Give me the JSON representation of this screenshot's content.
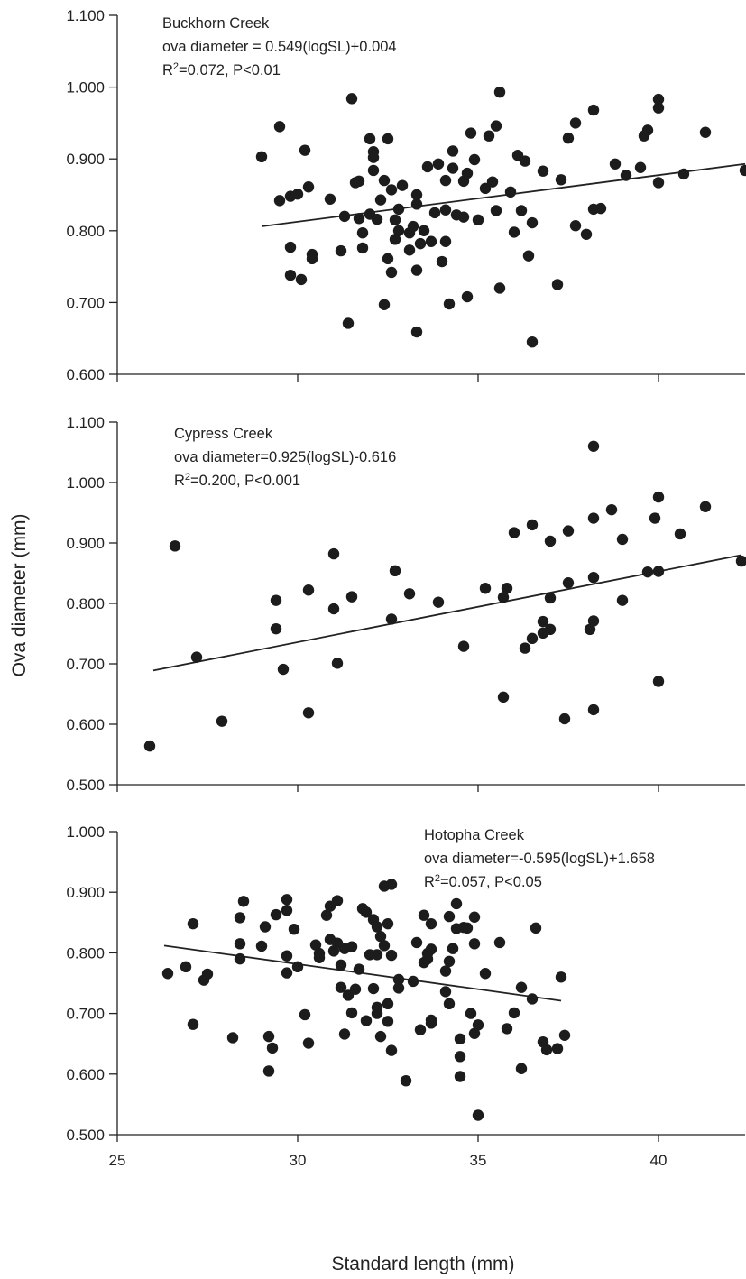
{
  "ylabel": "Ova diameter (mm)",
  "xlabel": "Standard length (mm)",
  "chart_data": [
    {
      "type": "scatter",
      "title": "",
      "annotation": [
        "Buckhorn Creek",
        "ova diameter = 0.549(logSL)+0.004",
        "R2=0.072, P<0.01"
      ],
      "xlim": [
        25,
        42.4
      ],
      "ylim": [
        0.6,
        1.1
      ],
      "yticks": [
        "0.600",
        "0.700",
        "0.800",
        "0.900",
        "1.000",
        "1.100"
      ],
      "xticks": [],
      "trend": {
        "x": [
          29.0,
          42.4
        ],
        "y": [
          0.806,
          0.893
        ]
      },
      "points": [
        [
          29.0,
          0.903
        ],
        [
          29.5,
          0.945
        ],
        [
          29.5,
          0.842
        ],
        [
          29.8,
          0.848
        ],
        [
          29.8,
          0.777
        ],
        [
          29.8,
          0.738
        ],
        [
          30.0,
          0.851
        ],
        [
          30.1,
          0.732
        ],
        [
          30.2,
          0.912
        ],
        [
          30.3,
          0.861
        ],
        [
          30.4,
          0.767
        ],
        [
          30.4,
          0.761
        ],
        [
          30.9,
          0.844
        ],
        [
          31.2,
          0.772
        ],
        [
          31.3,
          0.82
        ],
        [
          31.4,
          0.671
        ],
        [
          31.5,
          0.984
        ],
        [
          31.6,
          0.867
        ],
        [
          31.7,
          0.817
        ],
        [
          31.7,
          0.869
        ],
        [
          31.8,
          0.776
        ],
        [
          31.8,
          0.797
        ],
        [
          32.0,
          0.928
        ],
        [
          32.0,
          0.823
        ],
        [
          32.1,
          0.902
        ],
        [
          32.1,
          0.91
        ],
        [
          32.1,
          0.884
        ],
        [
          32.2,
          0.816
        ],
        [
          32.3,
          0.843
        ],
        [
          32.4,
          0.697
        ],
        [
          32.4,
          0.87
        ],
        [
          32.5,
          0.928
        ],
        [
          32.5,
          0.761
        ],
        [
          32.6,
          0.857
        ],
        [
          32.6,
          0.742
        ],
        [
          32.7,
          0.815
        ],
        [
          32.7,
          0.788
        ],
        [
          32.8,
          0.83
        ],
        [
          32.8,
          0.8
        ],
        [
          32.9,
          0.863
        ],
        [
          33.1,
          0.797
        ],
        [
          33.1,
          0.773
        ],
        [
          33.2,
          0.806
        ],
        [
          33.3,
          0.85
        ],
        [
          33.3,
          0.837
        ],
        [
          33.3,
          0.745
        ],
        [
          33.3,
          0.659
        ],
        [
          33.4,
          0.782
        ],
        [
          33.5,
          0.8
        ],
        [
          33.6,
          0.889
        ],
        [
          33.7,
          0.785
        ],
        [
          33.8,
          0.825
        ],
        [
          33.9,
          0.893
        ],
        [
          34.0,
          0.757
        ],
        [
          34.1,
          0.785
        ],
        [
          34.1,
          0.87
        ],
        [
          34.1,
          0.829
        ],
        [
          34.2,
          0.698
        ],
        [
          34.3,
          0.911
        ],
        [
          34.3,
          0.887
        ],
        [
          34.4,
          0.822
        ],
        [
          34.6,
          0.819
        ],
        [
          34.6,
          0.869
        ],
        [
          34.7,
          0.88
        ],
        [
          34.7,
          0.708
        ],
        [
          34.8,
          0.936
        ],
        [
          34.9,
          0.899
        ],
        [
          35.0,
          0.815
        ],
        [
          35.2,
          0.859
        ],
        [
          35.3,
          0.932
        ],
        [
          35.4,
          0.868
        ],
        [
          35.5,
          0.946
        ],
        [
          35.5,
          0.828
        ],
        [
          35.6,
          0.993
        ],
        [
          35.6,
          0.72
        ],
        [
          35.9,
          0.854
        ],
        [
          36.0,
          0.798
        ],
        [
          36.1,
          0.905
        ],
        [
          36.2,
          0.828
        ],
        [
          36.3,
          0.897
        ],
        [
          36.4,
          0.765
        ],
        [
          36.5,
          0.811
        ],
        [
          36.5,
          0.645
        ],
        [
          36.8,
          0.883
        ],
        [
          37.2,
          0.725
        ],
        [
          37.3,
          0.871
        ],
        [
          37.5,
          0.929
        ],
        [
          37.7,
          0.807
        ],
        [
          37.7,
          0.95
        ],
        [
          38.0,
          0.795
        ],
        [
          38.2,
          0.968
        ],
        [
          38.2,
          0.83
        ],
        [
          38.4,
          0.831
        ],
        [
          38.8,
          0.893
        ],
        [
          39.1,
          0.877
        ],
        [
          39.5,
          0.888
        ],
        [
          39.6,
          0.932
        ],
        [
          39.7,
          0.94
        ],
        [
          40.0,
          0.983
        ],
        [
          40.0,
          0.971
        ],
        [
          40.0,
          0.867
        ],
        [
          40.7,
          0.879
        ],
        [
          41.3,
          0.937
        ],
        [
          42.4,
          0.884
        ]
      ]
    },
    {
      "type": "scatter",
      "title": "",
      "annotation": [
        "Cypress Creek",
        "ova diameter=0.925(logSL)-0.616",
        "R2=0.200, P<0.001"
      ],
      "xlim": [
        25,
        42.4
      ],
      "ylim": [
        0.5,
        1.1
      ],
      "yticks": [
        "0.500",
        "0.600",
        "0.700",
        "0.800",
        "0.900",
        "1.000",
        "1.100"
      ],
      "xticks": [],
      "trend": {
        "x": [
          26.0,
          42.3
        ],
        "y": [
          0.689,
          0.88
        ]
      },
      "points": [
        [
          25.9,
          0.564
        ],
        [
          26.6,
          0.895
        ],
        [
          27.2,
          0.711
        ],
        [
          27.9,
          0.605
        ],
        [
          29.4,
          0.805
        ],
        [
          29.4,
          0.758
        ],
        [
          29.6,
          0.691
        ],
        [
          30.3,
          0.822
        ],
        [
          30.3,
          0.619
        ],
        [
          31.0,
          0.882
        ],
        [
          31.0,
          0.791
        ],
        [
          31.1,
          0.701
        ],
        [
          31.5,
          0.811
        ],
        [
          32.6,
          0.774
        ],
        [
          32.7,
          0.854
        ],
        [
          33.1,
          0.816
        ],
        [
          33.9,
          0.802
        ],
        [
          34.6,
          0.729
        ],
        [
          35.2,
          0.825
        ],
        [
          35.7,
          0.81
        ],
        [
          35.7,
          0.645
        ],
        [
          35.8,
          0.825
        ],
        [
          36.0,
          0.917
        ],
        [
          36.3,
          0.726
        ],
        [
          36.5,
          0.93
        ],
        [
          36.5,
          0.742
        ],
        [
          36.8,
          0.751
        ],
        [
          36.8,
          0.77
        ],
        [
          37.0,
          0.757
        ],
        [
          37.0,
          0.903
        ],
        [
          37.0,
          0.809
        ],
        [
          37.4,
          0.609
        ],
        [
          37.5,
          0.92
        ],
        [
          37.5,
          0.834
        ],
        [
          38.1,
          0.757
        ],
        [
          38.2,
          1.06
        ],
        [
          38.2,
          0.941
        ],
        [
          38.2,
          0.843
        ],
        [
          38.2,
          0.771
        ],
        [
          38.2,
          0.624
        ],
        [
          38.7,
          0.955
        ],
        [
          39.0,
          0.906
        ],
        [
          39.0,
          0.805
        ],
        [
          39.7,
          0.852
        ],
        [
          39.9,
          0.941
        ],
        [
          40.0,
          0.976
        ],
        [
          40.0,
          0.853
        ],
        [
          40.0,
          0.671
        ],
        [
          40.6,
          0.915
        ],
        [
          41.3,
          0.96
        ],
        [
          42.3,
          0.87
        ]
      ]
    },
    {
      "type": "scatter",
      "title": "",
      "annotation": [
        "Hotopha Creek",
        "ova diameter=-0.595(logSL)+1.658",
        "R2=0.057, P<0.05"
      ],
      "xlim": [
        25,
        42.4
      ],
      "ylim": [
        0.5,
        1.0
      ],
      "yticks": [
        "0.500",
        "0.600",
        "0.700",
        "0.800",
        "0.900",
        "1.000"
      ],
      "xticks": [
        "25",
        "30",
        "35",
        "40"
      ],
      "trend": {
        "x": [
          26.3,
          37.3
        ],
        "y": [
          0.812,
          0.721
        ]
      },
      "points": [
        [
          26.4,
          0.766
        ],
        [
          26.9,
          0.777
        ],
        [
          27.1,
          0.848
        ],
        [
          27.1,
          0.682
        ],
        [
          27.4,
          0.755
        ],
        [
          27.5,
          0.765
        ],
        [
          28.2,
          0.66
        ],
        [
          28.4,
          0.858
        ],
        [
          28.4,
          0.815
        ],
        [
          28.4,
          0.79
        ],
        [
          28.5,
          0.885
        ],
        [
          29.0,
          0.811
        ],
        [
          29.1,
          0.843
        ],
        [
          29.2,
          0.605
        ],
        [
          29.2,
          0.662
        ],
        [
          29.3,
          0.643
        ],
        [
          29.4,
          0.863
        ],
        [
          29.7,
          0.888
        ],
        [
          29.7,
          0.87
        ],
        [
          29.7,
          0.795
        ],
        [
          29.7,
          0.767
        ],
        [
          29.9,
          0.839
        ],
        [
          30.0,
          0.777
        ],
        [
          30.2,
          0.698
        ],
        [
          30.3,
          0.651
        ],
        [
          30.5,
          0.813
        ],
        [
          30.6,
          0.799
        ],
        [
          30.6,
          0.792
        ],
        [
          30.8,
          0.862
        ],
        [
          30.9,
          0.877
        ],
        [
          30.9,
          0.822
        ],
        [
          31.0,
          0.803
        ],
        [
          31.1,
          0.886
        ],
        [
          31.1,
          0.816
        ],
        [
          31.2,
          0.78
        ],
        [
          31.2,
          0.743
        ],
        [
          31.3,
          0.666
        ],
        [
          31.3,
          0.807
        ],
        [
          31.4,
          0.73
        ],
        [
          31.5,
          0.81
        ],
        [
          31.5,
          0.701
        ],
        [
          31.6,
          0.74
        ],
        [
          31.7,
          0.773
        ],
        [
          31.8,
          0.873
        ],
        [
          31.9,
          0.688
        ],
        [
          31.9,
          0.867
        ],
        [
          32.0,
          0.797
        ],
        [
          32.1,
          0.741
        ],
        [
          32.1,
          0.855
        ],
        [
          32.2,
          0.797
        ],
        [
          32.2,
          0.71
        ],
        [
          32.2,
          0.843
        ],
        [
          32.2,
          0.7
        ],
        [
          32.3,
          0.827
        ],
        [
          32.3,
          0.662
        ],
        [
          32.4,
          0.91
        ],
        [
          32.4,
          0.812
        ],
        [
          32.5,
          0.716
        ],
        [
          32.5,
          0.687
        ],
        [
          32.5,
          0.848
        ],
        [
          32.6,
          0.913
        ],
        [
          32.6,
          0.796
        ],
        [
          32.6,
          0.639
        ],
        [
          32.8,
          0.756
        ],
        [
          32.8,
          0.742
        ],
        [
          33.0,
          0.589
        ],
        [
          33.2,
          0.753
        ],
        [
          33.3,
          0.817
        ],
        [
          33.4,
          0.673
        ],
        [
          33.5,
          0.862
        ],
        [
          33.5,
          0.784
        ],
        [
          33.6,
          0.799
        ],
        [
          33.6,
          0.79
        ],
        [
          33.7,
          0.848
        ],
        [
          33.7,
          0.806
        ],
        [
          33.7,
          0.689
        ],
        [
          33.7,
          0.684
        ],
        [
          34.1,
          0.736
        ],
        [
          34.1,
          0.77
        ],
        [
          34.2,
          0.86
        ],
        [
          34.2,
          0.716
        ],
        [
          34.2,
          0.786
        ],
        [
          34.3,
          0.807
        ],
        [
          34.4,
          0.881
        ],
        [
          34.4,
          0.84
        ],
        [
          34.5,
          0.658
        ],
        [
          34.5,
          0.629
        ],
        [
          34.5,
          0.596
        ],
        [
          34.6,
          0.842
        ],
        [
          34.7,
          0.841
        ],
        [
          34.8,
          0.7
        ],
        [
          34.9,
          0.667
        ],
        [
          34.9,
          0.815
        ],
        [
          34.9,
          0.859
        ],
        [
          35.0,
          0.681
        ],
        [
          35.0,
          0.532
        ],
        [
          35.2,
          0.766
        ],
        [
          35.6,
          0.817
        ],
        [
          35.8,
          0.675
        ],
        [
          36.0,
          0.701
        ],
        [
          36.2,
          0.609
        ],
        [
          36.2,
          0.743
        ],
        [
          36.5,
          0.724
        ],
        [
          36.6,
          0.841
        ],
        [
          36.8,
          0.653
        ],
        [
          36.9,
          0.64
        ],
        [
          37.2,
          0.642
        ],
        [
          37.4,
          0.664
        ],
        [
          37.3,
          0.76
        ]
      ]
    }
  ]
}
